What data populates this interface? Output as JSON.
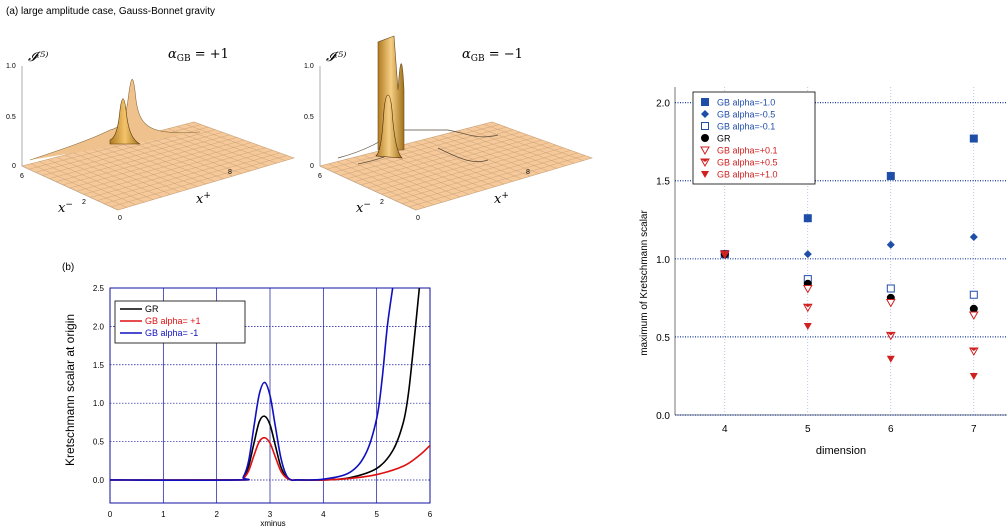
{
  "header": {
    "title": "(a) large amplitude case, Gauss-Bonnet gravity",
    "panel_b_label": "(b)"
  },
  "surface_plots": [
    {
      "zlabel": "𝓘⁽⁵⁾",
      "alpha_label": "α",
      "alpha_sub": "GB",
      "alpha_value": " = +1",
      "ztick_top": "1.0",
      "ztick_mid": "0.5",
      "ztick_zero": "0",
      "xminus_label": "x",
      "xminus_sup": "−",
      "xplus_label": "x",
      "xplus_sup": "+",
      "tick_6": "6",
      "tick_2": "2",
      "tick_0": "0",
      "tick_8": "8"
    },
    {
      "zlabel": "𝓘⁽⁵⁾",
      "alpha_label": "α",
      "alpha_sub": "GB",
      "alpha_value": " = −1",
      "ztick_top": "1.0",
      "ztick_mid": "0.5",
      "ztick_zero": "0",
      "xminus_label": "x",
      "xminus_sup": "−",
      "xplus_label": "x",
      "xplus_sup": "+",
      "tick_6": "6",
      "tick_2": "2",
      "tick_0": "0",
      "tick_8": "8"
    }
  ],
  "chart_data": [
    {
      "type": "line",
      "title": "",
      "xlabel": "xminus",
      "ylabel": "Kretschmann scalar at origin",
      "xlim": [
        0,
        6
      ],
      "ylim": [
        -0.3,
        2.5
      ],
      "xticks": [
        "0",
        "1",
        "2",
        "3",
        "4",
        "5",
        "6"
      ],
      "yticks": [
        "0.0",
        "0.5",
        "1.0",
        "1.5",
        "2.0",
        "2.5"
      ],
      "legend_position": "top-left",
      "series": [
        {
          "name": "GR",
          "color": "#000000",
          "x": [
            0,
            2.4,
            2.5,
            2.6,
            2.7,
            2.8,
            2.9,
            3.0,
            3.1,
            3.2,
            3.3,
            3.4,
            3.5,
            4.0,
            4.5,
            5.0,
            5.3,
            5.5,
            5.6,
            5.7,
            5.8
          ],
          "y": [
            0,
            0.0,
            0.03,
            0.18,
            0.48,
            0.76,
            0.83,
            0.72,
            0.45,
            0.18,
            0.04,
            0.0,
            0.0,
            0.0,
            0.03,
            0.15,
            0.38,
            0.75,
            1.15,
            1.8,
            2.5
          ]
        },
        {
          "name": "GB alpha= +1",
          "color": "#e01010",
          "x": [
            0,
            2.4,
            2.5,
            2.6,
            2.7,
            2.8,
            2.9,
            3.0,
            3.1,
            3.2,
            3.3,
            3.4,
            3.5,
            4.0,
            4.5,
            5.0,
            5.5,
            5.8,
            6.0
          ],
          "y": [
            0,
            0.0,
            0.02,
            0.12,
            0.32,
            0.5,
            0.55,
            0.48,
            0.3,
            0.12,
            0.03,
            0.0,
            0.0,
            0.0,
            0.02,
            0.07,
            0.18,
            0.32,
            0.45
          ]
        },
        {
          "name": "GB alpha= -1",
          "color": "#1010c0",
          "x": [
            0,
            2.4,
            2.5,
            2.6,
            2.7,
            2.8,
            2.9,
            3.0,
            3.1,
            3.2,
            3.3,
            3.4,
            3.5,
            4.0,
            4.5,
            4.8,
            5.0,
            5.1,
            5.2,
            5.3
          ],
          "y": [
            0,
            0.0,
            0.04,
            0.25,
            0.7,
            1.12,
            1.27,
            1.1,
            0.7,
            0.3,
            0.07,
            0.0,
            0.0,
            0.01,
            0.1,
            0.35,
            0.8,
            1.3,
            2.0,
            2.5
          ]
        }
      ]
    },
    {
      "type": "scatter",
      "title": "",
      "xlabel": "dimension",
      "ylabel": "maximum of Kretschmann scalar",
      "xlim": [
        3.4,
        7.4
      ],
      "ylim": [
        0,
        2.1
      ],
      "xticks": [
        "4",
        "5",
        "6",
        "7"
      ],
      "yticks": [
        "0.0",
        "0.5",
        "1.0",
        "1.5",
        "2.0"
      ],
      "legend_position": "top-left",
      "series": [
        {
          "name": "GB alpha=-1.0",
          "marker": "square-filled",
          "color": "#1f4ea8",
          "x": [
            4,
            5,
            6,
            7
          ],
          "y": [
            1.03,
            1.26,
            1.53,
            1.77
          ]
        },
        {
          "name": "GB alpha=-0.5",
          "marker": "diamond-filled",
          "color": "#1f4ea8",
          "x": [
            4,
            5,
            6,
            7
          ],
          "y": [
            1.03,
            1.03,
            1.09,
            1.14
          ]
        },
        {
          "name": "GB alpha=-0.1",
          "marker": "square-open",
          "color": "#1f4ea8",
          "x": [
            4,
            5,
            6,
            7
          ],
          "y": [
            1.03,
            0.87,
            0.81,
            0.77
          ]
        },
        {
          "name": "GR",
          "marker": "circle-filled",
          "color": "#000000",
          "x": [
            4,
            5,
            6,
            7
          ],
          "y": [
            1.03,
            0.84,
            0.75,
            0.68
          ]
        },
        {
          "name": "GB alpha=+0.1",
          "marker": "triangle-open",
          "color": "#d02020",
          "x": [
            4,
            5,
            6,
            7
          ],
          "y": [
            1.03,
            0.81,
            0.72,
            0.64
          ]
        },
        {
          "name": "GB alpha=+0.5",
          "marker": "triangle-half",
          "color": "#d02020",
          "x": [
            4,
            5,
            6,
            7
          ],
          "y": [
            1.03,
            0.69,
            0.51,
            0.41
          ]
        },
        {
          "name": "GB alpha=+1.0",
          "marker": "triangle-filled",
          "color": "#d02020",
          "x": [
            4,
            5,
            6,
            7
          ],
          "y": [
            1.03,
            0.57,
            0.36,
            0.25
          ]
        }
      ]
    }
  ]
}
